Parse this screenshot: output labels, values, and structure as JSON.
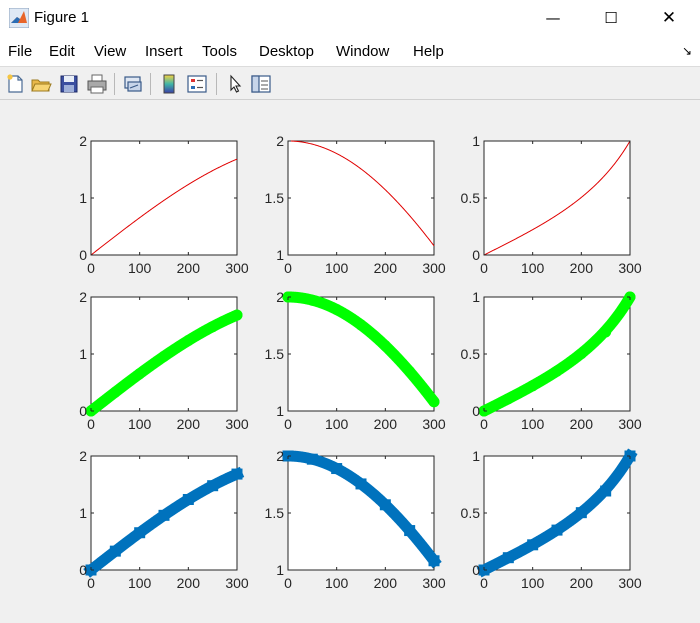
{
  "window": {
    "title": "Figure 1",
    "minimize_glyph": "—",
    "maximize_glyph": "☐",
    "close_glyph": "✕"
  },
  "menubar": {
    "items": [
      "File",
      "Edit",
      "View",
      "Insert",
      "Tools",
      "Desktop",
      "Window",
      "Help"
    ],
    "dock_arrow_glyph": "↘"
  },
  "toolbar": {
    "icons": [
      "new-figure-icon",
      "open-file-icon",
      "save-icon",
      "print-icon",
      "link-plot-icon",
      "insert-colorbar-icon",
      "insert-legend-icon",
      "edit-plot-arrow-icon",
      "property-inspector-icon"
    ]
  },
  "colors": {
    "red_line": "#e00000",
    "green_marker": "#00ff00",
    "blue_marker": "#0072bd",
    "axes_face": "#ffffff",
    "figure_bg": "#f0f0f0"
  },
  "chart_data": [
    {
      "type": "line",
      "function": "sin(x/300)*2",
      "x": [
        0,
        50,
        100,
        150,
        200,
        250,
        300
      ],
      "y": [
        0,
        0.331,
        0.654,
        0.959,
        1.237,
        1.479,
        1.683
      ],
      "xlim": [
        0,
        300
      ],
      "ylim": [
        0,
        2
      ],
      "xticks": [
        "0",
        "100",
        "200",
        "300"
      ],
      "yticks": [
        "0",
        "1",
        "2"
      ],
      "color": "#e00000",
      "style": "thin"
    },
    {
      "type": "line",
      "function": "cos(x/300)*2",
      "x": [
        0,
        50,
        100,
        150,
        200,
        250,
        300
      ],
      "y": [
        2,
        1.972,
        1.89,
        1.755,
        1.572,
        1.346,
        1.081
      ],
      "xlim": [
        0,
        300
      ],
      "ylim": [
        1,
        2
      ],
      "xticks": [
        "0",
        "100",
        "200",
        "300"
      ],
      "yticks": [
        "1",
        "1.5",
        "2"
      ],
      "color": "#e00000",
      "style": "thin"
    },
    {
      "type": "line",
      "function": "tan(x/300)*0.64",
      "x": [
        0,
        50,
        100,
        150,
        200,
        250,
        300
      ],
      "y": [
        0,
        0.108,
        0.221,
        0.35,
        0.503,
        0.693,
        1.0
      ],
      "xlim": [
        0,
        300
      ],
      "ylim": [
        0,
        1
      ],
      "xticks": [
        "0",
        "100",
        "200",
        "300"
      ],
      "yticks": [
        "0",
        "0.5",
        "1"
      ],
      "color": "#e00000",
      "style": "thin"
    },
    {
      "type": "scatter",
      "x": [
        0,
        50,
        100,
        150,
        200,
        250,
        300
      ],
      "y": [
        0,
        0.331,
        0.654,
        0.959,
        1.237,
        1.479,
        1.683
      ],
      "xlim": [
        0,
        300
      ],
      "ylim": [
        0,
        2
      ],
      "xticks": [
        "0",
        "100",
        "200",
        "300"
      ],
      "yticks": [
        "0",
        "1",
        "2"
      ],
      "color": "#00ff00",
      "style": "circle"
    },
    {
      "type": "scatter",
      "x": [
        0,
        50,
        100,
        150,
        200,
        250,
        300
      ],
      "y": [
        2,
        1.972,
        1.89,
        1.755,
        1.572,
        1.346,
        1.081
      ],
      "xlim": [
        0,
        300
      ],
      "ylim": [
        1,
        2
      ],
      "xticks": [
        "0",
        "100",
        "200",
        "300"
      ],
      "yticks": [
        "1",
        "1.5",
        "2"
      ],
      "color": "#00ff00",
      "style": "circle"
    },
    {
      "type": "scatter",
      "x": [
        0,
        50,
        100,
        150,
        200,
        250,
        300
      ],
      "y": [
        0,
        0.108,
        0.221,
        0.35,
        0.503,
        0.693,
        1.0
      ],
      "xlim": [
        0,
        300
      ],
      "ylim": [
        0,
        1
      ],
      "xticks": [
        "0",
        "100",
        "200",
        "300"
      ],
      "yticks": [
        "0",
        "0.5",
        "1"
      ],
      "color": "#00ff00",
      "style": "circle"
    },
    {
      "type": "scatter",
      "x": [
        0,
        50,
        100,
        150,
        200,
        250,
        300
      ],
      "y": [
        0,
        0.331,
        0.654,
        0.959,
        1.237,
        1.479,
        1.683
      ],
      "xlim": [
        0,
        300
      ],
      "ylim": [
        0,
        2
      ],
      "xticks": [
        "0",
        "100",
        "200",
        "300"
      ],
      "yticks": [
        "0",
        "1",
        "2"
      ],
      "color": "#0072bd",
      "style": "square"
    },
    {
      "type": "scatter",
      "x": [
        0,
        50,
        100,
        150,
        200,
        250,
        300
      ],
      "y": [
        2,
        1.972,
        1.89,
        1.755,
        1.572,
        1.346,
        1.081
      ],
      "xlim": [
        0,
        300
      ],
      "ylim": [
        1,
        2
      ],
      "xticks": [
        "0",
        "100",
        "200",
        "300"
      ],
      "yticks": [
        "1",
        "1.5",
        "2"
      ],
      "color": "#0072bd",
      "style": "square"
    },
    {
      "type": "scatter",
      "x": [
        0,
        50,
        100,
        150,
        200,
        250,
        300
      ],
      "y": [
        0,
        0.108,
        0.221,
        0.35,
        0.503,
        0.693,
        1.0
      ],
      "xlim": [
        0,
        300
      ],
      "ylim": [
        0,
        1
      ],
      "xticks": [
        "0",
        "100",
        "200",
        "300"
      ],
      "yticks": [
        "0",
        "0.5",
        "1"
      ],
      "color": "#0072bd",
      "style": "square"
    }
  ]
}
